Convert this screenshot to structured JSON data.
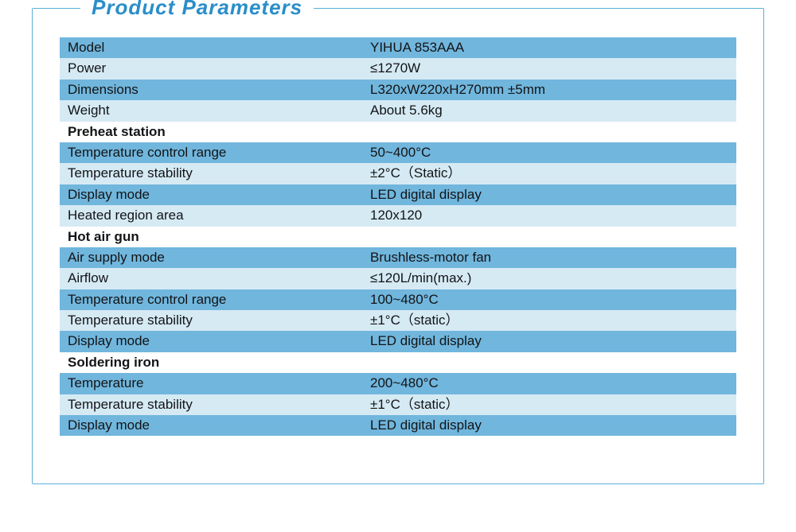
{
  "title": "Product Parameters",
  "colors": {
    "title": "#2a8ec9",
    "border": "#5ab0d9",
    "row_dark": "#71b6dd",
    "row_light": "#d6eaf4",
    "row_section_bg": "#ffffff",
    "text": "#121416"
  },
  "typography": {
    "title_fontsize": 26,
    "title_weight": 800,
    "title_italic": true,
    "body_fontsize": 17
  },
  "table": {
    "columns": [
      "label",
      "value"
    ],
    "rows": [
      {
        "style": "dark",
        "label": "Model",
        "value": "YIHUA 853AAA"
      },
      {
        "style": "light",
        "label": "Power",
        "value": "≤1270W"
      },
      {
        "style": "dark",
        "label": "Dimensions",
        "value": "L320xW220xH270mm  ±5mm"
      },
      {
        "style": "light",
        "label": "Weight",
        "value": "About 5.6kg"
      },
      {
        "style": "section",
        "label": "Preheat station",
        "value": ""
      },
      {
        "style": "dark",
        "label": "Temperature control range",
        "value": "50~400°C"
      },
      {
        "style": "light",
        "label": "Temperature stability",
        "value": "±2°C（Static）"
      },
      {
        "style": "dark",
        "label": "Display mode",
        "value": "LED digital display"
      },
      {
        "style": "light",
        "label": "Heated region area",
        "value": "120x120"
      },
      {
        "style": "section",
        "label": "Hot air gun",
        "value": ""
      },
      {
        "style": "dark",
        "label": "Air supply mode",
        "value": "Brushless-motor fan"
      },
      {
        "style": "light",
        "label": " Airflow",
        "value": "≤120L/min(max.)"
      },
      {
        "style": "dark",
        "label": "Temperature control range",
        "value": "100~480°C"
      },
      {
        "style": "light",
        "label": "Temperature stability",
        "value": "±1°C（static）"
      },
      {
        "style": "dark",
        "label": "Display mode",
        "value": "LED digital display"
      },
      {
        "style": "section",
        "label": "Soldering iron",
        "value": ""
      },
      {
        "style": "dark",
        "label": "Temperature",
        "value": "200~480°C"
      },
      {
        "style": "light",
        "label": "Temperature stability",
        "value": "±1°C（static）"
      },
      {
        "style": "dark",
        "label": "Display mode",
        "value": "LED digital display"
      }
    ]
  }
}
